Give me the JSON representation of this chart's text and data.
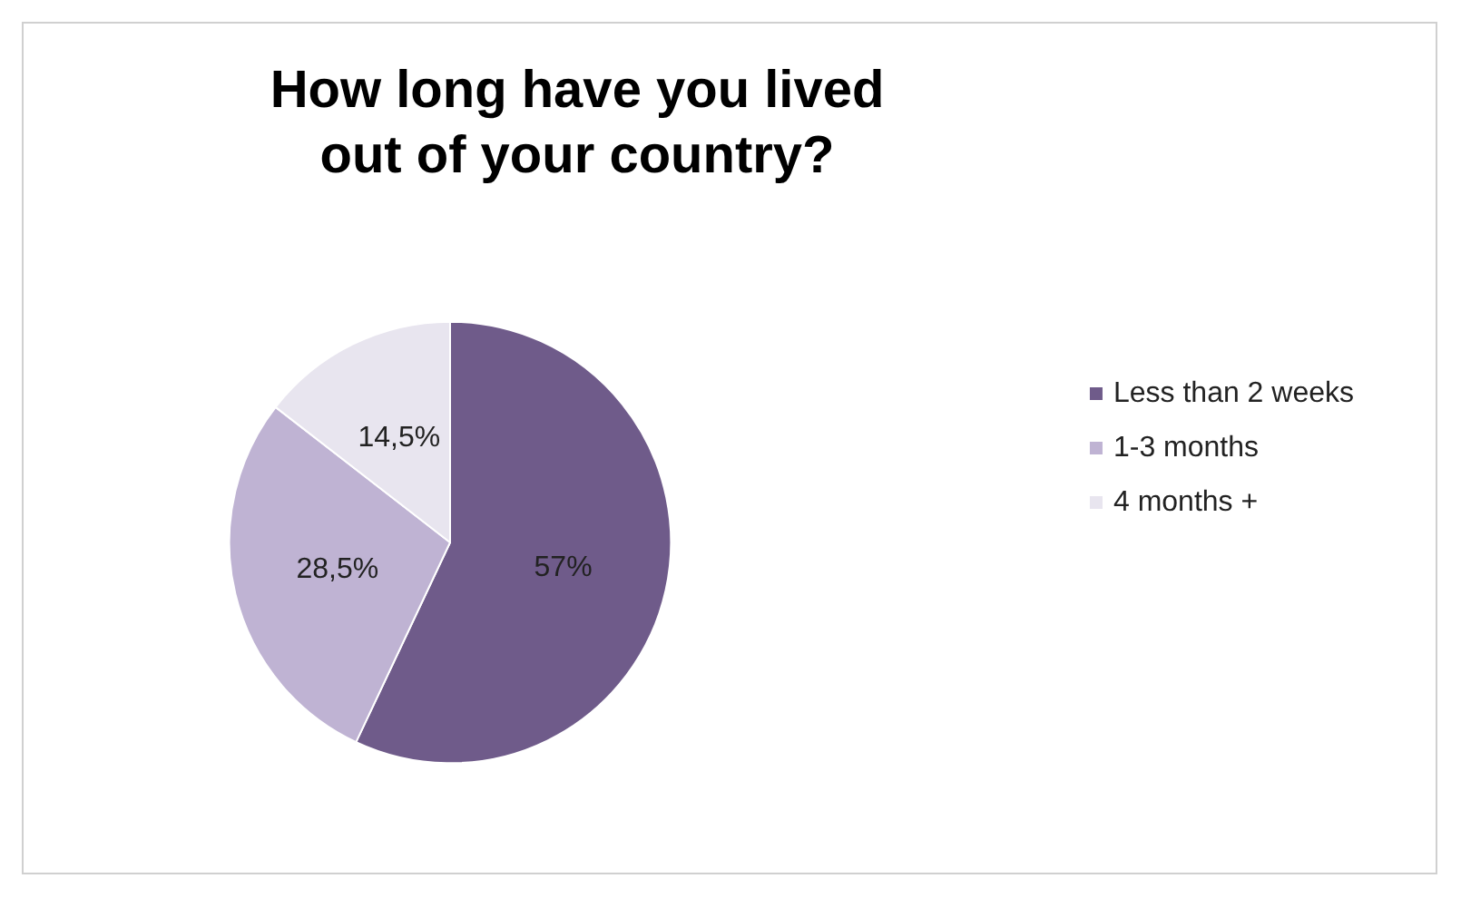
{
  "chart_data": {
    "type": "pie",
    "title": "How long have you lived\nout of your country?",
    "categories": [
      "Less than 2 weeks",
      "1-3 months",
      "4 months +"
    ],
    "values": [
      57,
      28.5,
      14.5
    ],
    "value_labels": [
      "57%",
      "28,5%",
      "14,5%"
    ],
    "colors": [
      "#6f5b8a",
      "#bfb3d3",
      "#e8e5ef"
    ],
    "legend": "right"
  }
}
